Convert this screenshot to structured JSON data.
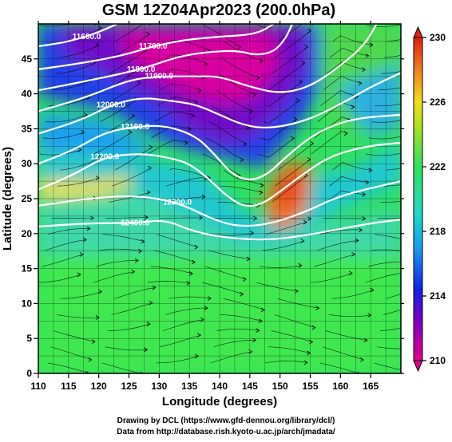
{
  "chart_data": {
    "type": "heatmap",
    "title": "GSM 12Z04Apr2023 (200.0hPa)",
    "xlabel": "Longitude (degrees)",
    "ylabel": "Latitude  (degrees)",
    "xlim": [
      110,
      170
    ],
    "ylim": [
      0,
      50
    ],
    "x_ticks": [
      "110",
      "115",
      "120",
      "125",
      "130",
      "135",
      "140",
      "145",
      "150",
      "155",
      "160",
      "165"
    ],
    "x_tick_values": [
      110,
      115,
      120,
      125,
      130,
      135,
      140,
      145,
      150,
      155,
      160,
      165
    ],
    "y_ticks": [
      "0",
      "5",
      "10",
      "15",
      "20",
      "25",
      "30",
      "35",
      "40",
      "45"
    ],
    "y_tick_values": [
      0,
      5,
      10,
      15,
      20,
      25,
      30,
      35,
      40,
      45
    ],
    "colorbar": {
      "min": 210,
      "max": 230,
      "ticks": [
        "210",
        "214",
        "218",
        "222",
        "226",
        "230"
      ],
      "tick_values": [
        210,
        214,
        218,
        222,
        226,
        230
      ],
      "colors": [
        "#e0008c",
        "#8000c0",
        "#1020e0",
        "#1a9cf0",
        "#20d8c8",
        "#30e060",
        "#a8e020",
        "#f0e020",
        "#f08020",
        "#e02010"
      ]
    },
    "contours": [
      {
        "label": "11600.0",
        "points": [
          [
            110,
            46.8
          ],
          [
            114,
            47.3
          ],
          [
            118,
            48.2
          ],
          [
            121,
            49.2
          ],
          [
            123,
            50
          ]
        ]
      },
      {
        "label": "11700.0",
        "points": [
          [
            110,
            43.5
          ],
          [
            118,
            44.5
          ],
          [
            124,
            45.5
          ],
          [
            129,
            46.8
          ],
          [
            134,
            47.7
          ],
          [
            140,
            48.2
          ],
          [
            146,
            48.5
          ],
          [
            149,
            50
          ]
        ]
      },
      {
        "label": "11800.0",
        "points": [
          [
            110,
            40.5
          ],
          [
            119,
            42
          ],
          [
            127,
            43.5
          ],
          [
            133,
            45.3
          ],
          [
            138,
            46
          ],
          [
            143,
            46.2
          ],
          [
            146,
            45.5
          ],
          [
            149,
            46
          ],
          [
            151,
            48
          ],
          [
            152,
            50
          ]
        ]
      },
      {
        "label": "11900.0",
        "points": [
          [
            110,
            37.5
          ],
          [
            118,
            39.5
          ],
          [
            125,
            42
          ],
          [
            130,
            42.5
          ],
          [
            136,
            42.5
          ],
          [
            140,
            42.5
          ],
          [
            145,
            41
          ],
          [
            150,
            40
          ],
          [
            155,
            41
          ],
          [
            160,
            44
          ],
          [
            164,
            47
          ],
          [
            166,
            50
          ]
        ]
      },
      {
        "label": "12000.0",
        "points": [
          [
            110,
            34.3
          ],
          [
            117,
            36.2
          ],
          [
            122,
            38.4
          ],
          [
            127,
            39.5
          ],
          [
            132,
            39
          ],
          [
            136,
            38.5
          ],
          [
            140,
            37
          ],
          [
            144,
            35.5
          ],
          [
            148,
            35
          ],
          [
            154,
            36
          ],
          [
            160,
            38.5
          ],
          [
            165,
            41
          ],
          [
            170,
            43
          ]
        ]
      },
      {
        "label": "12100.0",
        "points": [
          [
            110,
            30
          ],
          [
            116,
            32
          ],
          [
            121,
            34.5
          ],
          [
            126,
            35.3
          ],
          [
            131,
            35.5
          ],
          [
            136,
            34
          ],
          [
            139,
            31.5
          ],
          [
            142,
            28.5
          ],
          [
            145,
            27.5
          ],
          [
            148,
            28.5
          ],
          [
            151,
            31
          ],
          [
            156,
            34.5
          ],
          [
            162,
            36.5
          ],
          [
            170,
            37
          ]
        ]
      },
      {
        "label": "12200.0",
        "points": [
          [
            110,
            26.3
          ],
          [
            116,
            28.5
          ],
          [
            121,
            31
          ],
          [
            127,
            31.5
          ],
          [
            132,
            30.8
          ],
          [
            135,
            30
          ],
          [
            138,
            28
          ],
          [
            141,
            25.5
          ],
          [
            144,
            23.8
          ],
          [
            147,
            24.2
          ],
          [
            150,
            26
          ],
          [
            153,
            28
          ],
          [
            158,
            31
          ],
          [
            164,
            32.5
          ],
          [
            170,
            33
          ]
        ]
      },
      {
        "label": "12300.0",
        "points": [
          [
            110,
            24
          ],
          [
            118,
            25
          ],
          [
            126,
            25.5
          ],
          [
            133,
            24.5
          ],
          [
            139,
            22
          ],
          [
            143,
            21
          ],
          [
            148,
            21.3
          ],
          [
            154,
            23
          ],
          [
            160,
            25.5
          ],
          [
            170,
            27.5
          ]
        ]
      },
      {
        "label": "12400.0",
        "points": [
          [
            110,
            21
          ],
          [
            118,
            21.5
          ],
          [
            126,
            21.5
          ],
          [
            131,
            22
          ],
          [
            135,
            20.5
          ],
          [
            140,
            19.5
          ],
          [
            148,
            19
          ],
          [
            156,
            20
          ],
          [
            165,
            21.5
          ],
          [
            170,
            22
          ]
        ]
      }
    ]
  },
  "footer": {
    "line1": "Drawing by DCL (https://www.gfd-dennou.org/library/dcl/)",
    "line2": "Data from http://database.rish.kyoto-u.ac.jp/arch/jmadata/"
  }
}
